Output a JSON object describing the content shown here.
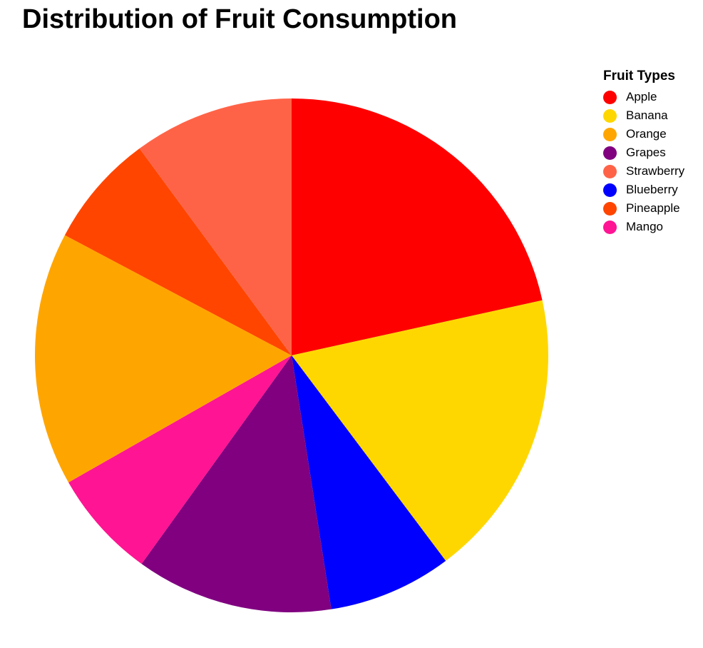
{
  "chart_data": {
    "type": "pie",
    "title": "Distribution of Fruit Consumption",
    "legend_title": "Fruit Types",
    "legend_position": "top-right",
    "categories": [
      "Apple",
      "Banana",
      "Orange",
      "Grapes",
      "Strawberry",
      "Blueberry",
      "Pineapple",
      "Mango"
    ],
    "values": [
      20.5,
      17.3,
      15.2,
      11.8,
      9.6,
      7.4,
      6.8,
      6.5
    ],
    "colors": [
      "#ff0000",
      "#ffd700",
      "#ffa500",
      "#800080",
      "#ff6347",
      "#0000ff",
      "#ff4500",
      "#ff1493"
    ],
    "slice_order": [
      "Apple",
      "Banana",
      "Blueberry",
      "Grapes",
      "Mango",
      "Orange",
      "Pineapple",
      "Strawberry"
    ]
  }
}
